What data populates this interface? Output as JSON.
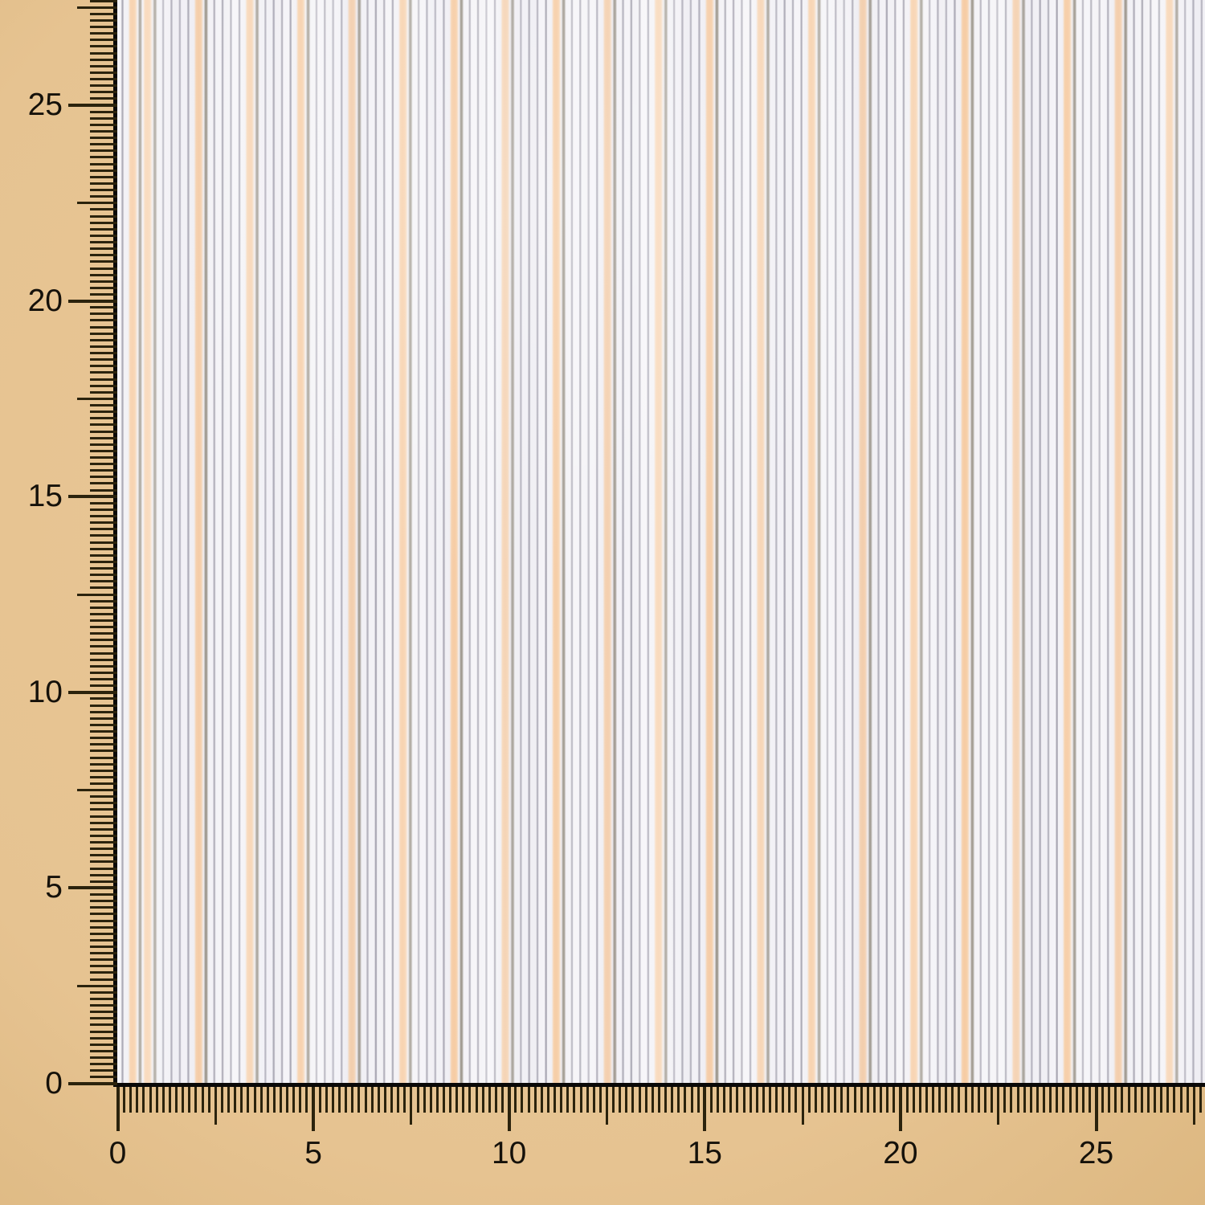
{
  "photo": {
    "subject": "striped-fabric-swatch-with-ruler"
  },
  "fabric": {
    "colors": {
      "ground": "#f1f0f4",
      "pinstripe": "#b2b0bb",
      "pinstripe_dark": "#9c968b",
      "stripe_peach": "#f7d0a9"
    }
  },
  "ruler": {
    "colors": {
      "background": "#e6c391",
      "tick": "#2b230d",
      "label": "#15110a",
      "edge_line": "#0a0908"
    },
    "unit_labels_vertical": [
      "0",
      "5",
      "10",
      "15",
      "20",
      "25"
    ],
    "unit_labels_horizontal": [
      "0",
      "5",
      "10",
      "15",
      "20",
      "25"
    ]
  }
}
